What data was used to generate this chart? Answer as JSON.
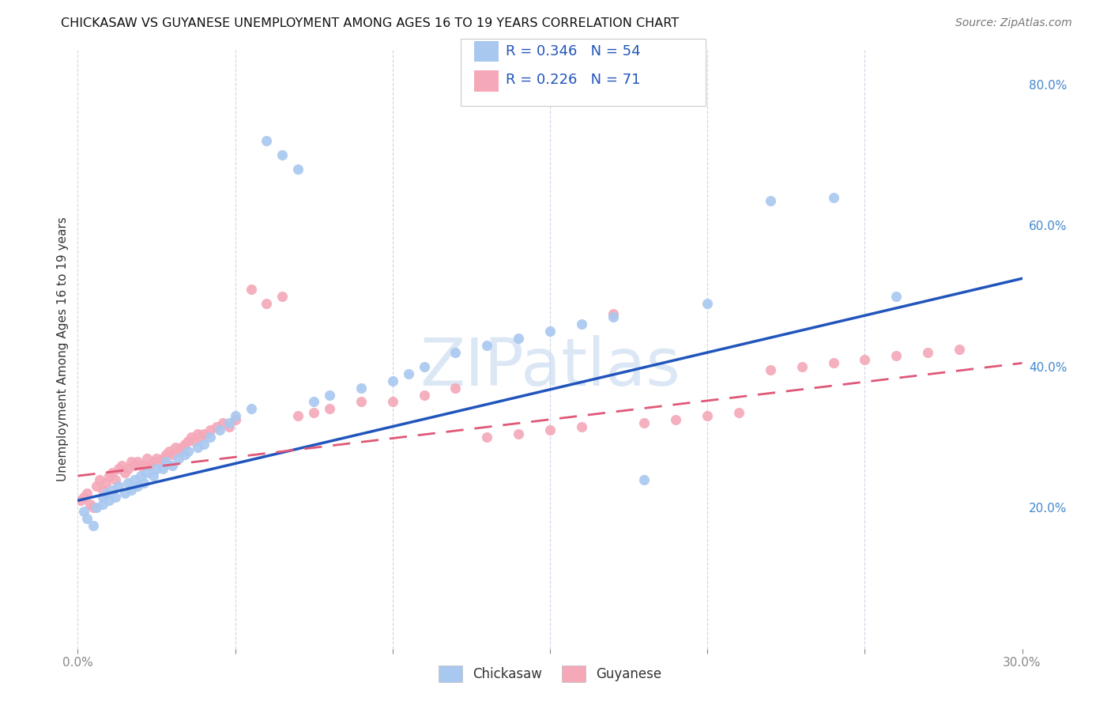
{
  "title": "CHICKASAW VS GUYANESE UNEMPLOYMENT AMONG AGES 16 TO 19 YEARS CORRELATION CHART",
  "source": "Source: ZipAtlas.com",
  "ylabel": "Unemployment Among Ages 16 to 19 years",
  "xlim": [
    0.0,
    0.3
  ],
  "ylim": [
    0.0,
    0.85
  ],
  "chickasaw_color": "#a8c8f0",
  "guyanese_color": "#f4a8b8",
  "line_chickasaw_color": "#2255bb",
  "line_guyanese_color": "#e05878",
  "watermark_color": "#c5d8f0",
  "legend_R_chickasaw": "R = 0.346",
  "legend_N_chickasaw": "N = 54",
  "legend_R_guyanese": "R = 0.226",
  "legend_N_guyanese": "N = 71",
  "chickasaw_x": [
    0.002,
    0.003,
    0.005,
    0.006,
    0.008,
    0.008,
    0.009,
    0.01,
    0.011,
    0.012,
    0.013,
    0.015,
    0.016,
    0.017,
    0.018,
    0.019,
    0.02,
    0.021,
    0.022,
    0.024,
    0.025,
    0.027,
    0.028,
    0.03,
    0.032,
    0.034,
    0.035,
    0.038,
    0.04,
    0.042,
    0.045,
    0.048,
    0.05,
    0.055,
    0.06,
    0.065,
    0.07,
    0.075,
    0.08,
    0.09,
    0.1,
    0.105,
    0.11,
    0.12,
    0.13,
    0.14,
    0.15,
    0.16,
    0.17,
    0.18,
    0.2,
    0.22,
    0.24,
    0.26
  ],
  "chickasaw_y": [
    0.195,
    0.185,
    0.175,
    0.2,
    0.215,
    0.205,
    0.22,
    0.21,
    0.225,
    0.215,
    0.23,
    0.22,
    0.235,
    0.225,
    0.24,
    0.23,
    0.245,
    0.235,
    0.25,
    0.245,
    0.255,
    0.255,
    0.265,
    0.26,
    0.27,
    0.275,
    0.28,
    0.285,
    0.29,
    0.3,
    0.31,
    0.32,
    0.33,
    0.34,
    0.72,
    0.7,
    0.68,
    0.35,
    0.36,
    0.37,
    0.38,
    0.39,
    0.4,
    0.42,
    0.43,
    0.44,
    0.45,
    0.46,
    0.47,
    0.24,
    0.49,
    0.635,
    0.64,
    0.5
  ],
  "guyanese_x": [
    0.001,
    0.002,
    0.003,
    0.004,
    0.005,
    0.006,
    0.007,
    0.008,
    0.009,
    0.01,
    0.011,
    0.012,
    0.013,
    0.014,
    0.015,
    0.016,
    0.017,
    0.018,
    0.019,
    0.02,
    0.021,
    0.022,
    0.023,
    0.024,
    0.025,
    0.026,
    0.027,
    0.028,
    0.029,
    0.03,
    0.031,
    0.032,
    0.033,
    0.034,
    0.035,
    0.036,
    0.037,
    0.038,
    0.039,
    0.04,
    0.042,
    0.044,
    0.046,
    0.048,
    0.05,
    0.055,
    0.06,
    0.065,
    0.07,
    0.075,
    0.08,
    0.09,
    0.1,
    0.11,
    0.12,
    0.13,
    0.14,
    0.15,
    0.16,
    0.17,
    0.18,
    0.19,
    0.2,
    0.21,
    0.22,
    0.23,
    0.24,
    0.25,
    0.26,
    0.27,
    0.28
  ],
  "guyanese_y": [
    0.21,
    0.215,
    0.22,
    0.205,
    0.2,
    0.23,
    0.24,
    0.225,
    0.235,
    0.245,
    0.25,
    0.24,
    0.255,
    0.26,
    0.25,
    0.255,
    0.265,
    0.26,
    0.265,
    0.26,
    0.26,
    0.27,
    0.26,
    0.265,
    0.27,
    0.265,
    0.27,
    0.275,
    0.28,
    0.275,
    0.285,
    0.28,
    0.285,
    0.29,
    0.295,
    0.3,
    0.295,
    0.305,
    0.3,
    0.305,
    0.31,
    0.315,
    0.32,
    0.315,
    0.325,
    0.51,
    0.49,
    0.5,
    0.33,
    0.335,
    0.34,
    0.35,
    0.35,
    0.36,
    0.37,
    0.3,
    0.305,
    0.31,
    0.315,
    0.475,
    0.32,
    0.325,
    0.33,
    0.335,
    0.395,
    0.4,
    0.405,
    0.41,
    0.415,
    0.42,
    0.425
  ],
  "line_blue_x0": 0.0,
  "line_blue_y0": 0.21,
  "line_blue_x1": 0.3,
  "line_blue_y1": 0.525,
  "line_pink_x0": 0.0,
  "line_pink_y0": 0.245,
  "line_pink_x1": 0.3,
  "line_pink_y1": 0.405
}
